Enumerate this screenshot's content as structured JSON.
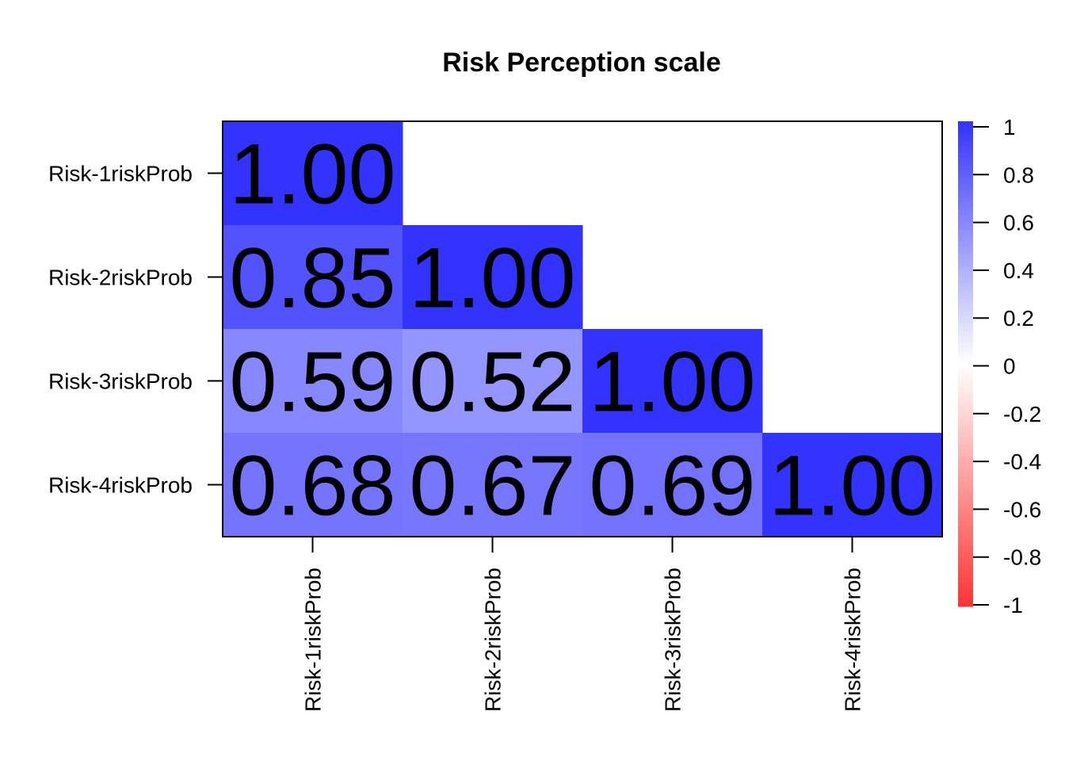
{
  "chart_data": {
    "type": "heatmap",
    "title": "Risk Perception scale",
    "variables": [
      "Risk-1riskProb",
      "Risk-2riskProb",
      "Risk-3riskProb",
      "Risk-4riskProb"
    ],
    "matrix": [
      [
        1.0,
        null,
        null,
        null
      ],
      [
        0.85,
        1.0,
        null,
        null
      ],
      [
        0.59,
        0.52,
        1.0,
        null
      ],
      [
        0.68,
        0.67,
        0.69,
        1.0
      ]
    ],
    "cell_labels": [
      [
        "1.00",
        "",
        "",
        ""
      ],
      [
        "0.85",
        "1.00",
        "",
        ""
      ],
      [
        "0.59",
        "0.52",
        "1.00",
        ""
      ],
      [
        "0.68",
        "0.67",
        "0.69",
        "1.00"
      ]
    ],
    "color_scale": {
      "low": "#ff3333",
      "mid": "#ffffff",
      "high": "#3333ff",
      "range": [
        -1,
        1
      ]
    },
    "legend": {
      "placement": "right",
      "ticks": [
        "1",
        "0.8",
        "0.6",
        "0.4",
        "0.2",
        "0",
        "-0.2",
        "-0.4",
        "-0.6",
        "-0.8",
        "-1"
      ]
    }
  }
}
